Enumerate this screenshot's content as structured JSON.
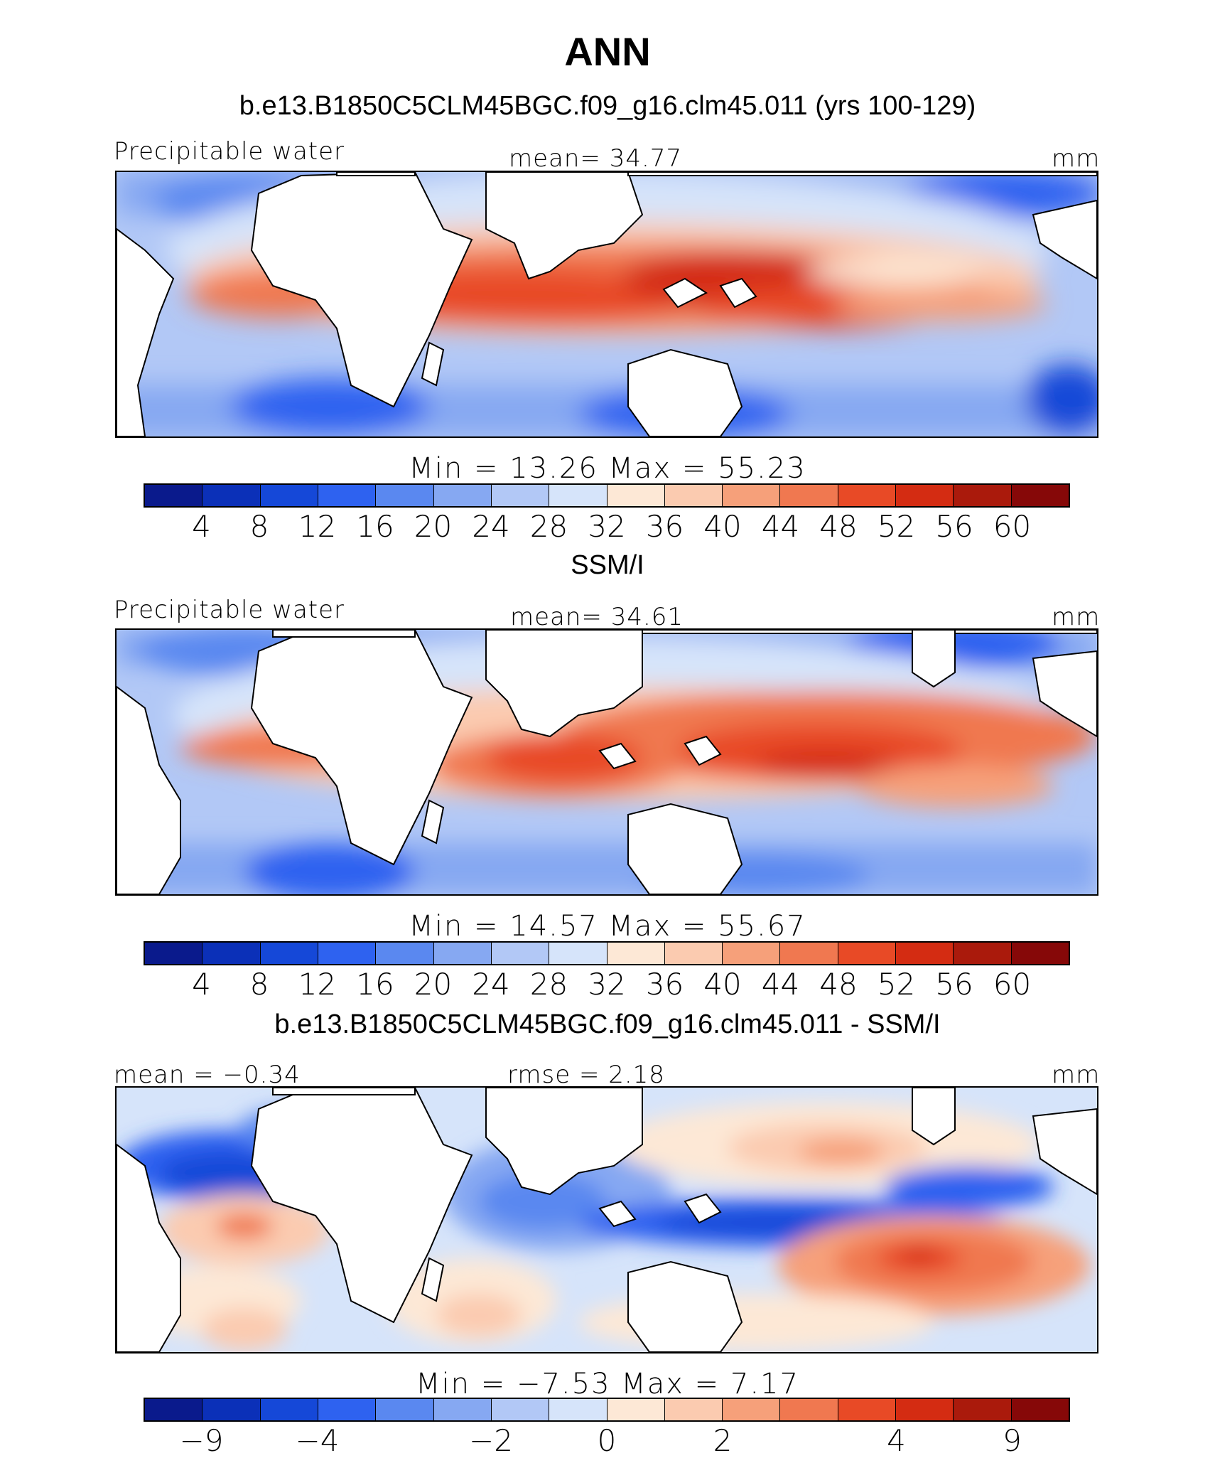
{
  "title": "ANN",
  "panels": [
    {
      "subtitle": "b.e13.B1850C5CLM45BGC.f09_g16.clm45.011 (yrs 100-129)",
      "left_label": "Precipitable water",
      "center_label": "mean=   34.77",
      "right_label": "mm",
      "min_max": "Min  =   13.26  Max  =   55.23",
      "min_value": 13.26,
      "max_value": 55.23,
      "colorbar_ticks": [
        "4",
        "8",
        "12",
        "16",
        "20",
        "24",
        "28",
        "32",
        "36",
        "40",
        "44",
        "48",
        "52",
        "56",
        "60"
      ]
    },
    {
      "subtitle": "SSM/I",
      "left_label": "Precipitable water",
      "center_label": "mean=   34.61",
      "right_label": "mm",
      "min_max": "Min  =   14.57  Max  =   55.67",
      "min_value": 14.57,
      "max_value": 55.67,
      "colorbar_ticks": [
        "4",
        "8",
        "12",
        "16",
        "20",
        "24",
        "28",
        "32",
        "36",
        "40",
        "44",
        "48",
        "52",
        "56",
        "60"
      ]
    },
    {
      "subtitle": "b.e13.B1850C5CLM45BGC.f09_g16.clm45.011 - SSM/I",
      "left_label": "mean  =   −0.34",
      "center_label": "rmse  =     2.18",
      "right_label": "mm",
      "min_max": "Min  =   −7.53  Max  =     7.17",
      "min_value": -7.53,
      "max_value": 7.17,
      "colorbar_ticks": [
        "−9",
        "−4",
        "−2",
        "0",
        "2",
        "4",
        "9"
      ]
    }
  ],
  "colorbar_colors": [
    "#0a1a8c",
    "#0b30b8",
    "#1548d8",
    "#2e62f0",
    "#5a88f0",
    "#86a8f2",
    "#b2c8f6",
    "#d6e4fa",
    "#fde8d6",
    "#fbcbb0",
    "#f6a07a",
    "#f07850",
    "#e84a26",
    "#d42c12",
    "#aa1a0c",
    "#860808"
  ]
}
